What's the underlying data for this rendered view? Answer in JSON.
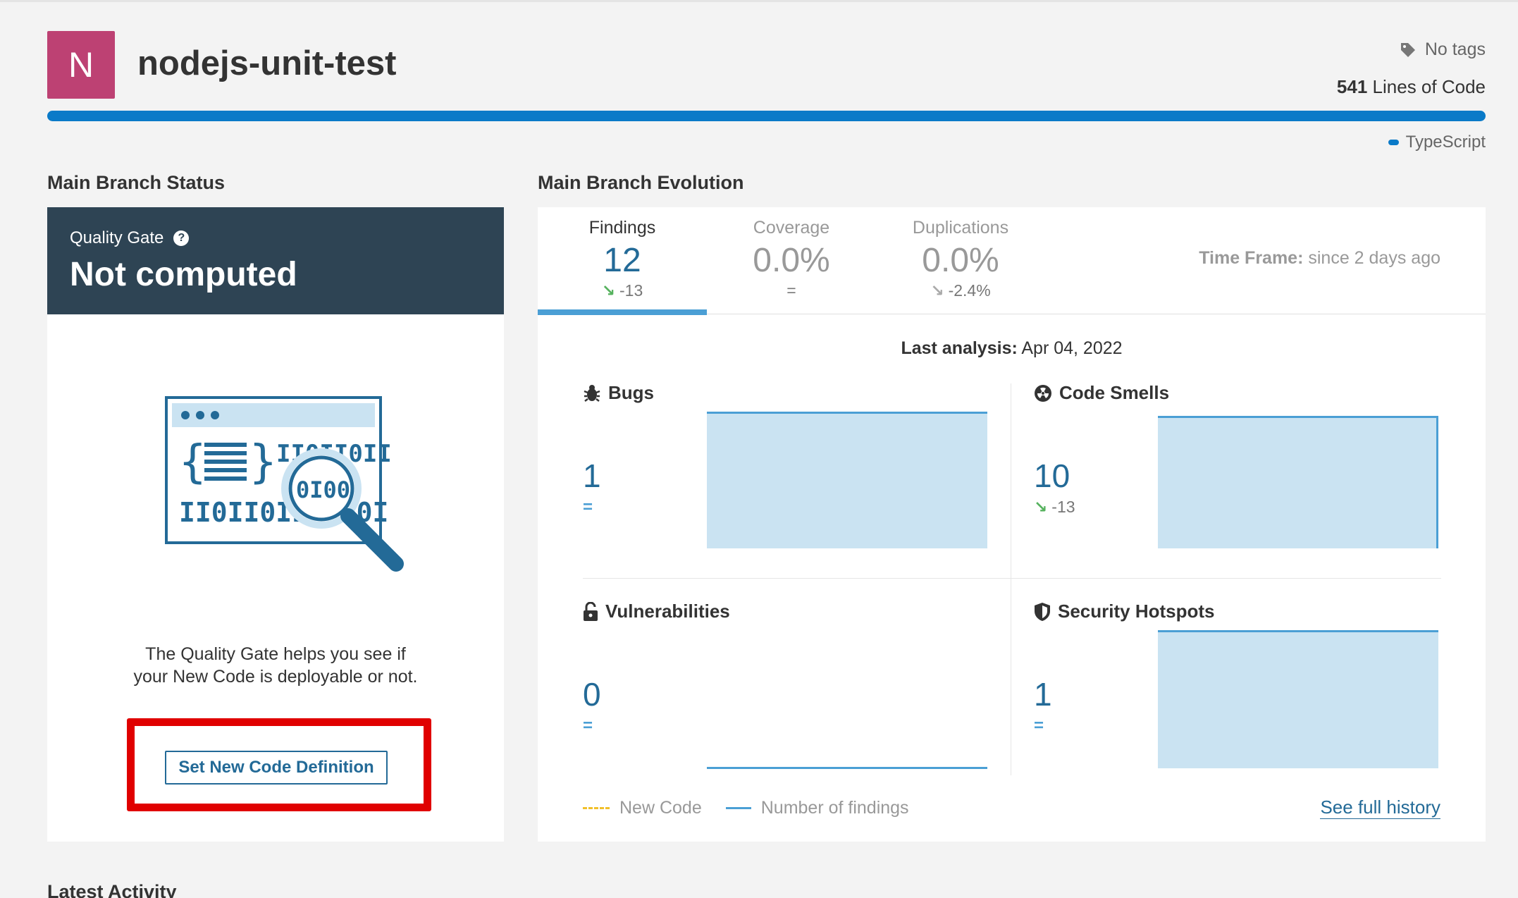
{
  "project": {
    "avatar_letter": "N",
    "name": "nodejs-unit-test",
    "tags": "No tags",
    "loc_value": "541",
    "loc_label": "Lines of Code",
    "language": "TypeScript",
    "avatar_color": "#bd4173",
    "language_color": "#0a7ac8"
  },
  "status": {
    "section_title": "Main Branch Status",
    "quality_gate_label": "Quality Gate",
    "help_icon": "?",
    "quality_gate_status": "Not computed",
    "message_line1": "The Quality Gate helps you see if",
    "message_line2": "your New Code is deployable or not.",
    "button_label": "Set New Code Definition",
    "highlight_color": "#e00000"
  },
  "evolution": {
    "section_title": "Main Branch Evolution",
    "tabs": [
      {
        "label": "Findings",
        "value": "12",
        "delta": "-13",
        "delta_icon": "arrow-down-right",
        "active": true
      },
      {
        "label": "Coverage",
        "value": "0.0%",
        "delta": "=",
        "delta_icon": "",
        "active": false
      },
      {
        "label": "Duplications",
        "value": "0.0%",
        "delta": "-2.4%",
        "delta_icon": "arrow-down-right",
        "active": false
      }
    ],
    "timeframe_label": "Time Frame:",
    "timeframe_value": "since 2 days ago",
    "last_analysis_label": "Last analysis:",
    "last_analysis_value": "Apr 04, 2022",
    "metrics": {
      "bugs": {
        "title": "Bugs",
        "icon": "bug-icon",
        "value": "1",
        "delta": "="
      },
      "code_smells": {
        "title": "Code Smells",
        "icon": "radiation-icon",
        "value": "10",
        "delta": "-13"
      },
      "vulnerabilities": {
        "title": "Vulnerabilities",
        "icon": "lock-icon",
        "value": "0",
        "delta": "="
      },
      "security_hotspots": {
        "title": "Security Hotspots",
        "icon": "shield-icon",
        "value": "1",
        "delta": "="
      }
    },
    "legend_new_code": "New Code",
    "legend_findings": "Number of findings",
    "see_history": "See full history",
    "accent_color": "#236a97"
  },
  "latest_activity_title": "Latest Activity"
}
